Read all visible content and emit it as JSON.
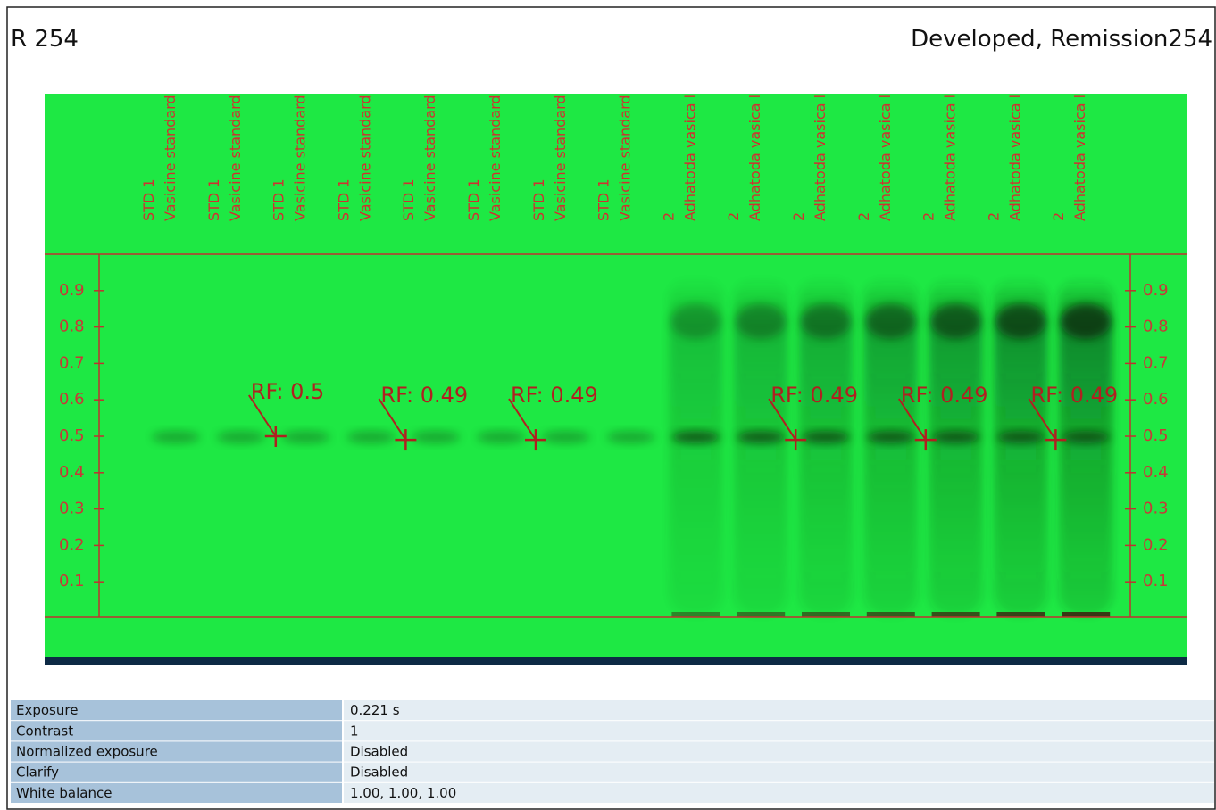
{
  "header": {
    "title": "R 254",
    "mode": "Developed, Remission254"
  },
  "plate": {
    "rf_axis": {
      "lim": [
        0,
        1
      ],
      "ticks": [
        0.1,
        0.2,
        0.3,
        0.4,
        0.5,
        0.6,
        0.7,
        0.8,
        0.9
      ]
    },
    "lanes": [
      {
        "line1": "STD 1",
        "line2": "Vasicine standard"
      },
      {
        "line1": "STD 1",
        "line2": "Vasicine standard",
        "marker": {
          "label": "RF: 0.5",
          "rf": 0.5
        }
      },
      {
        "line1": "STD 1",
        "line2": "Vasicine standard"
      },
      {
        "line1": "STD 1",
        "line2": "Vasicine standard",
        "marker": {
          "label": "RF: 0.49",
          "rf": 0.49
        }
      },
      {
        "line1": "STD 1",
        "line2": "Vasicine standard"
      },
      {
        "line1": "STD 1",
        "line2": "Vasicine standard",
        "marker": {
          "label": "RF: 0.49",
          "rf": 0.49
        }
      },
      {
        "line1": "STD 1",
        "line2": "Vasicine standard"
      },
      {
        "line1": "STD 1",
        "line2": "Vasicine standard"
      },
      {
        "line1": "2",
        "line2": "Adhatoda vasica l"
      },
      {
        "line1": "2",
        "line2": "Adhatoda vasica l",
        "marker": {
          "label": "RF: 0.49",
          "rf": 0.49
        }
      },
      {
        "line1": "2",
        "line2": "Adhatoda vasica l"
      },
      {
        "line1": "2",
        "line2": "Adhatoda vasica l",
        "marker": {
          "label": "RF: 0.49",
          "rf": 0.49
        }
      },
      {
        "line1": "2",
        "line2": "Adhatoda vasica l"
      },
      {
        "line1": "2",
        "line2": "Adhatoda vasica l",
        "marker": {
          "label": "RF: 0.49",
          "rf": 0.49
        }
      },
      {
        "line1": "2",
        "line2": "Adhatoda vasica l"
      }
    ]
  },
  "table": {
    "rows": [
      [
        "Exposure",
        "0.221 s"
      ],
      [
        "Contrast",
        "1"
      ],
      [
        "Normalized exposure",
        "Disabled"
      ],
      [
        "Clarify",
        "Disabled"
      ],
      [
        "White balance",
        "1.00, 1.00, 1.00"
      ]
    ]
  }
}
